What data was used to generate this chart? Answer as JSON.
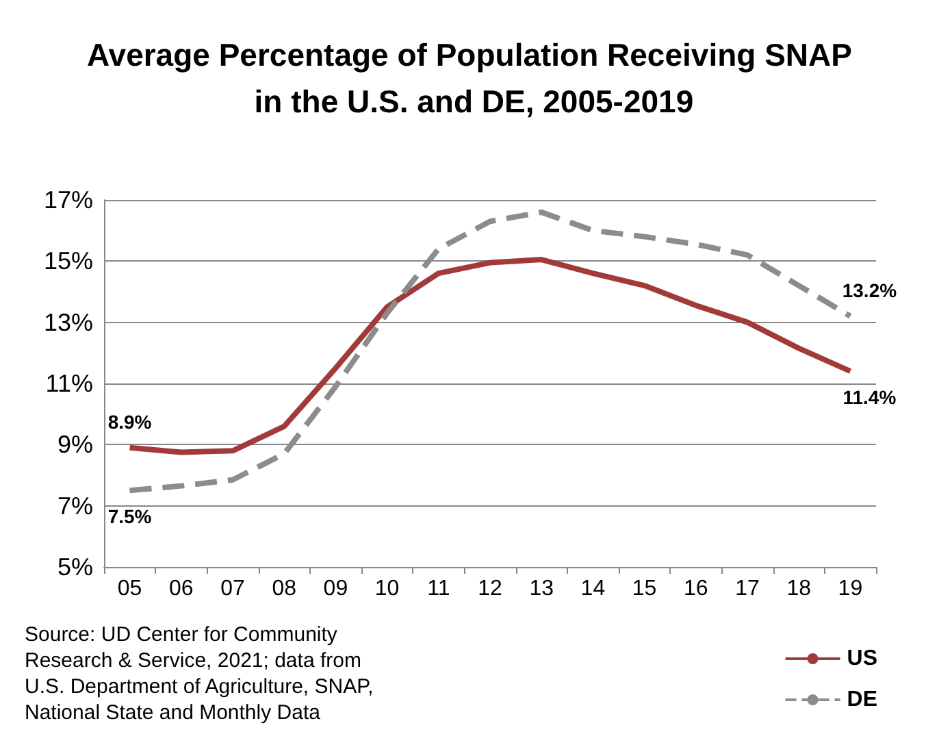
{
  "chart_data": {
    "type": "line",
    "title": "Average Percentage of Population Receiving SNAP in the U.S. and DE, 2005-2019",
    "categories": [
      "05",
      "06",
      "07",
      "08",
      "09",
      "10",
      "11",
      "12",
      "13",
      "14",
      "15",
      "16",
      "17",
      "18",
      "19"
    ],
    "series": [
      {
        "name": "US",
        "color": "#a33a3a",
        "line_style": "solid",
        "values": [
          8.9,
          8.75,
          8.8,
          9.6,
          11.5,
          13.5,
          14.6,
          14.95,
          15.05,
          14.6,
          14.2,
          13.55,
          13.0,
          12.15,
          11.4
        ],
        "value_labels": [
          "8.9%",
          null,
          null,
          null,
          null,
          null,
          null,
          null,
          null,
          null,
          null,
          null,
          null,
          null,
          "11.4%"
        ]
      },
      {
        "name": "DE",
        "color": "#8c8c8c",
        "line_style": "dashed",
        "values": [
          7.5,
          7.65,
          7.85,
          8.7,
          10.9,
          13.3,
          15.4,
          16.3,
          16.6,
          16.0,
          15.8,
          15.55,
          15.2,
          14.2,
          13.2
        ],
        "value_labels": [
          "7.5%",
          null,
          null,
          null,
          null,
          null,
          null,
          null,
          null,
          null,
          null,
          null,
          null,
          null,
          "13.2%"
        ]
      }
    ],
    "ylim": [
      5,
      17
    ],
    "yticks": [
      {
        "value": 5,
        "label": "5%"
      },
      {
        "value": 7,
        "label": "7%"
      },
      {
        "value": 9,
        "label": "9%"
      },
      {
        "value": 11,
        "label": "11%"
      },
      {
        "value": 13,
        "label": "13%"
      },
      {
        "value": 15,
        "label": "15%"
      },
      {
        "value": 17,
        "label": "17%"
      }
    ],
    "grid": "y",
    "legend": "bottom right",
    "marker": "none",
    "annotations": [
      "Source: UD Center for Community Research & Service, 2021; data from U.S. Department of Agriculture, SNAP, National State and Monthly Data"
    ]
  }
}
